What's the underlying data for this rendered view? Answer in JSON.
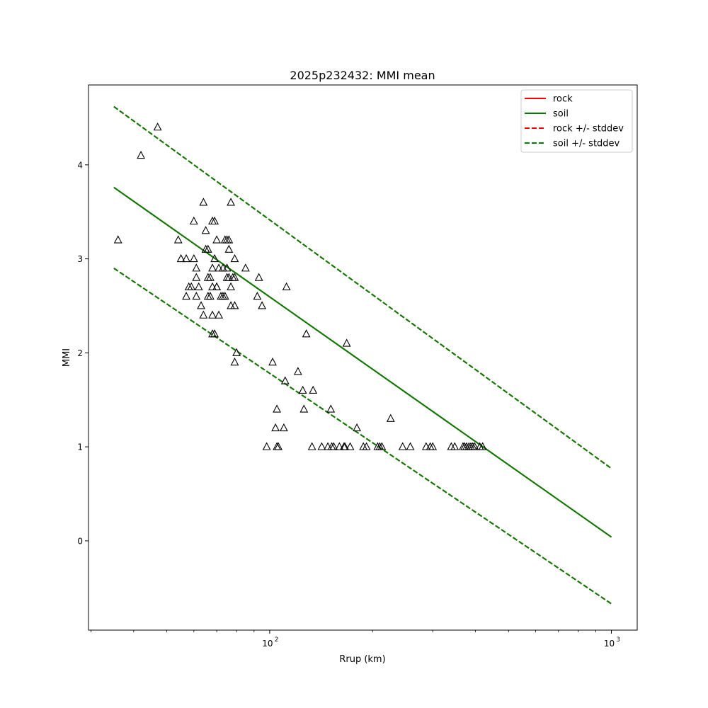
{
  "chart_data": {
    "type": "scatter",
    "title": "2025p232432: MMI mean",
    "xlabel": "Rrup (km)",
    "ylabel": "MMI",
    "xscale": "log",
    "xlim": [
      29.5,
      1190
    ],
    "ylim": [
      -0.95,
      4.85
    ],
    "grid": false,
    "legend_position": "top-right",
    "x_ticks": [
      {
        "value": 100,
        "base": "10",
        "exp": "2"
      },
      {
        "value": 1000,
        "base": "10",
        "exp": "3"
      }
    ],
    "y_ticks": [
      0,
      1,
      2,
      3,
      4
    ],
    "lines": [
      {
        "name": "rock",
        "color": "#ff0000",
        "dash": false,
        "x": [
          35,
          1000
        ],
        "y": [
          3.76,
          0.04
        ]
      },
      {
        "name": "soil",
        "color": "#008000",
        "dash": false,
        "x": [
          35,
          1000
        ],
        "y": [
          3.76,
          0.04
        ]
      },
      {
        "name": "rock +/- stddev",
        "color": "#ff0000",
        "dash": true,
        "x": [
          35,
          1000
        ],
        "y": [
          4.62,
          0.77
        ],
        "y2": [
          2.9,
          -0.67
        ]
      },
      {
        "name": "soil +/- stddev",
        "color": "#008000",
        "dash": true,
        "x": [
          35,
          1000
        ],
        "y": [
          4.62,
          0.77
        ],
        "y2": [
          2.9,
          -0.67
        ]
      }
    ],
    "points": [
      [
        36,
        3.2
      ],
      [
        42,
        4.1
      ],
      [
        47,
        4.4
      ],
      [
        54,
        3.2
      ],
      [
        55,
        3.0
      ],
      [
        57,
        2.6
      ],
      [
        57,
        3.0
      ],
      [
        58,
        2.7
      ],
      [
        59,
        2.7
      ],
      [
        60,
        3.0
      ],
      [
        60,
        3.4
      ],
      [
        61,
        2.9
      ],
      [
        61,
        2.8
      ],
      [
        61,
        2.6
      ],
      [
        62,
        2.7
      ],
      [
        63,
        2.5
      ],
      [
        64,
        2.4
      ],
      [
        64,
        3.6
      ],
      [
        65,
        3.3
      ],
      [
        65,
        3.1
      ],
      [
        66,
        2.8
      ],
      [
        66,
        2.6
      ],
      [
        66,
        3.1
      ],
      [
        67,
        2.8
      ],
      [
        67,
        2.6
      ],
      [
        68,
        2.7
      ],
      [
        68,
        2.9
      ],
      [
        68,
        2.4
      ],
      [
        68,
        2.2
      ],
      [
        68,
        3.4
      ],
      [
        69,
        3.4
      ],
      [
        69,
        3.0
      ],
      [
        69,
        2.2
      ],
      [
        70,
        2.7
      ],
      [
        70,
        2.7
      ],
      [
        70,
        3.2
      ],
      [
        71,
        2.9
      ],
      [
        71,
        2.4
      ],
      [
        72,
        2.6
      ],
      [
        73,
        2.6
      ],
      [
        73,
        2.9
      ],
      [
        74,
        2.6
      ],
      [
        74,
        3.2
      ],
      [
        75,
        2.8
      ],
      [
        75,
        3.2
      ],
      [
        75,
        2.9
      ],
      [
        76,
        2.8
      ],
      [
        76,
        3.2
      ],
      [
        76,
        3.1
      ],
      [
        77,
        2.7
      ],
      [
        77,
        3.6
      ],
      [
        77,
        2.5
      ],
      [
        78,
        2.8
      ],
      [
        79,
        2.8
      ],
      [
        79,
        3.0
      ],
      [
        79,
        2.5
      ],
      [
        79,
        1.9
      ],
      [
        80,
        2.0
      ],
      [
        85,
        2.9
      ],
      [
        92,
        2.6
      ],
      [
        93,
        2.8
      ],
      [
        95,
        2.5
      ],
      [
        98,
        1.0
      ],
      [
        102,
        1.9
      ],
      [
        104,
        1.2
      ],
      [
        105,
        1.0
      ],
      [
        105,
        1.4
      ],
      [
        106,
        1.0
      ],
      [
        110,
        1.2
      ],
      [
        111,
        1.7
      ],
      [
        112,
        2.7
      ],
      [
        121,
        1.8
      ],
      [
        125,
        1.6
      ],
      [
        126,
        1.4
      ],
      [
        128,
        2.2
      ],
      [
        133,
        1.0
      ],
      [
        134,
        1.6
      ],
      [
        142,
        1.0
      ],
      [
        148,
        1.0
      ],
      [
        151,
        1.4
      ],
      [
        152,
        1.0
      ],
      [
        154,
        1.0
      ],
      [
        160,
        1.0
      ],
      [
        165,
        1.0
      ],
      [
        166,
        1.0
      ],
      [
        168,
        2.1
      ],
      [
        172,
        1.0
      ],
      [
        180,
        1.2
      ],
      [
        188,
        1.0
      ],
      [
        192,
        1.0
      ],
      [
        207,
        1.0
      ],
      [
        210,
        1.0
      ],
      [
        213,
        1.0
      ],
      [
        226,
        1.3
      ],
      [
        245,
        1.0
      ],
      [
        258,
        1.0
      ],
      [
        287,
        1.0
      ],
      [
        295,
        1.0
      ],
      [
        300,
        1.0
      ],
      [
        340,
        1.0
      ],
      [
        348,
        1.0
      ],
      [
        368,
        1.0
      ],
      [
        372,
        1.0
      ],
      [
        377,
        1.0
      ],
      [
        383,
        1.0
      ],
      [
        388,
        1.0
      ],
      [
        393,
        1.0
      ],
      [
        398,
        1.0
      ],
      [
        412,
        1.0
      ],
      [
        420,
        1.0
      ]
    ]
  }
}
